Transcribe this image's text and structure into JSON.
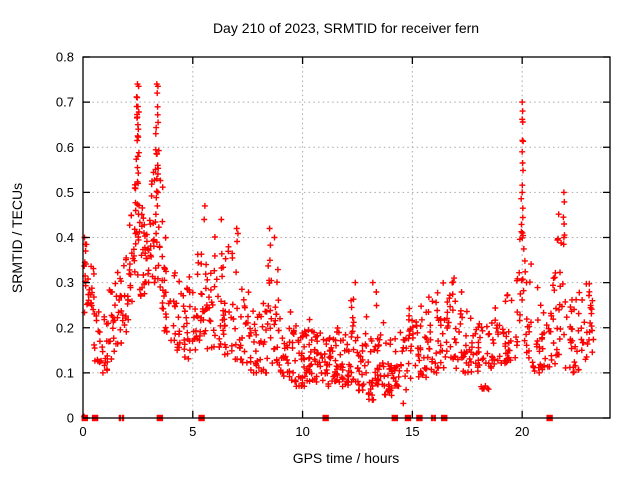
{
  "window": {
    "title": "Day 210 of 2023, SRMTID for receiver fern"
  },
  "chart_data": {
    "type": "scatter",
    "title": "Day 210 of 2023, SRMTID for receiver fern",
    "xlabel": "GPS time / hours",
    "ylabel": "SRMTID / TECUs",
    "xlim": [
      0,
      24
    ],
    "ylim": [
      0,
      0.8
    ],
    "grid": true,
    "legend": "none",
    "xticks": [
      0,
      5,
      10,
      15,
      20
    ],
    "xtick_labels": [
      "0",
      "5",
      "10",
      "15",
      "20"
    ],
    "yticks": [
      0,
      0.1,
      0.2,
      0.3,
      0.4,
      0.5,
      0.6,
      0.7,
      0.8
    ],
    "ytick_labels": [
      "0",
      "0.1",
      "0.2",
      "0.3",
      "0.4",
      "0.5",
      "0.6",
      "0.7",
      "0.8"
    ],
    "marker": {
      "shape": "plus",
      "color": "#ff0000",
      "size": 7
    },
    "grid_color": "#a8a8a8",
    "axis_color": "#000000",
    "seed": 20230210,
    "series": [
      {
        "name": "SRMTID",
        "style": "plus",
        "bins_format": [
          "t_start_h",
          "t_end_h",
          "y_min_TECU",
          "y_max_TECU",
          "n_points",
          "density_exponent"
        ],
        "bins": [
          [
            0.0,
            0.2,
            0.23,
            0.4,
            9,
            1.0
          ],
          [
            0.2,
            0.5,
            0.24,
            0.34,
            16,
            1.3
          ],
          [
            0.5,
            0.8,
            0.12,
            0.28,
            14,
            1.5
          ],
          [
            0.8,
            1.2,
            0.1,
            0.23,
            17,
            1.5
          ],
          [
            1.2,
            1.5,
            0.13,
            0.31,
            15,
            1.4
          ],
          [
            1.5,
            1.8,
            0.15,
            0.35,
            14,
            1.4
          ],
          [
            1.8,
            2.1,
            0.18,
            0.4,
            15,
            1.4
          ],
          [
            2.1,
            2.35,
            0.24,
            0.46,
            15,
            1.2
          ],
          [
            2.35,
            2.55,
            0.3,
            0.74,
            24,
            0.95
          ],
          [
            2.55,
            2.8,
            0.27,
            0.48,
            18,
            1.2
          ],
          [
            2.8,
            3.1,
            0.3,
            0.47,
            18,
            1.2
          ],
          [
            3.1,
            3.3,
            0.3,
            0.6,
            14,
            1.1
          ],
          [
            3.3,
            3.5,
            0.28,
            0.72,
            21,
            0.95
          ],
          [
            3.5,
            3.7,
            0.24,
            0.58,
            12,
            1.3
          ],
          [
            3.7,
            4.0,
            0.19,
            0.4,
            16,
            1.4
          ],
          [
            4.0,
            4.4,
            0.15,
            0.33,
            18,
            1.4
          ],
          [
            4.4,
            4.8,
            0.13,
            0.3,
            18,
            1.4
          ],
          [
            4.8,
            5.2,
            0.15,
            0.32,
            18,
            1.4
          ],
          [
            5.2,
            5.45,
            0.17,
            0.4,
            13,
            1.3
          ],
          [
            5.45,
            5.65,
            0.18,
            0.45,
            12,
            1.2
          ],
          [
            5.65,
            6.0,
            0.15,
            0.33,
            16,
            1.4
          ],
          [
            6.0,
            6.4,
            0.14,
            0.42,
            18,
            1.6
          ],
          [
            6.4,
            6.8,
            0.14,
            0.4,
            18,
            1.5
          ],
          [
            6.8,
            7.2,
            0.13,
            0.44,
            17,
            1.6
          ],
          [
            7.2,
            7.6,
            0.12,
            0.3,
            16,
            1.5
          ],
          [
            7.6,
            8.0,
            0.1,
            0.24,
            18,
            1.5
          ],
          [
            8.0,
            8.35,
            0.1,
            0.26,
            16,
            1.5
          ],
          [
            8.35,
            8.6,
            0.13,
            0.41,
            14,
            1.3
          ],
          [
            8.6,
            8.9,
            0.12,
            0.38,
            15,
            1.4
          ],
          [
            8.9,
            9.3,
            0.09,
            0.24,
            18,
            1.5
          ],
          [
            9.3,
            9.7,
            0.08,
            0.21,
            20,
            1.5
          ],
          [
            9.7,
            10.1,
            0.07,
            0.2,
            23,
            1.5
          ],
          [
            10.1,
            10.5,
            0.08,
            0.22,
            23,
            1.5
          ],
          [
            10.5,
            10.9,
            0.07,
            0.2,
            22,
            1.5
          ],
          [
            10.9,
            11.3,
            0.07,
            0.18,
            21,
            1.5
          ],
          [
            11.3,
            11.7,
            0.08,
            0.2,
            23,
            1.5
          ],
          [
            11.7,
            12.1,
            0.07,
            0.19,
            23,
            1.5
          ],
          [
            12.1,
            12.5,
            0.08,
            0.28,
            21,
            1.7
          ],
          [
            12.5,
            12.9,
            0.06,
            0.2,
            23,
            1.5
          ],
          [
            12.9,
            13.4,
            0.04,
            0.29,
            24,
            1.7
          ],
          [
            13.4,
            13.7,
            0.07,
            0.22,
            20,
            1.5
          ],
          [
            13.7,
            14.1,
            0.05,
            0.18,
            23,
            1.5
          ],
          [
            14.1,
            14.5,
            0.07,
            0.2,
            20,
            1.5
          ],
          [
            14.5,
            14.9,
            0.03,
            0.25,
            18,
            1.5
          ],
          [
            14.9,
            15.3,
            0.08,
            0.22,
            18,
            1.5
          ],
          [
            15.3,
            15.7,
            0.09,
            0.25,
            18,
            1.5
          ],
          [
            15.7,
            16.1,
            0.1,
            0.28,
            18,
            1.5
          ],
          [
            16.1,
            16.5,
            0.11,
            0.3,
            18,
            1.5
          ],
          [
            16.5,
            16.9,
            0.12,
            0.31,
            19,
            1.4
          ],
          [
            16.9,
            17.3,
            0.11,
            0.29,
            18,
            1.4
          ],
          [
            17.3,
            17.7,
            0.1,
            0.25,
            18,
            1.5
          ],
          [
            17.7,
            18.1,
            0.1,
            0.22,
            18,
            1.5
          ],
          [
            18.1,
            18.5,
            0.06,
            0.22,
            17,
            1.5
          ],
          [
            18.5,
            18.9,
            0.11,
            0.25,
            17,
            1.5
          ],
          [
            18.9,
            19.3,
            0.12,
            0.26,
            16,
            1.5
          ],
          [
            19.3,
            19.7,
            0.12,
            0.3,
            14,
            1.5
          ],
          [
            19.7,
            19.95,
            0.15,
            0.4,
            11,
            1.4
          ],
          [
            19.95,
            20.1,
            0.24,
            0.62,
            14,
            1.0
          ],
          [
            20.1,
            20.5,
            0.12,
            0.35,
            17,
            1.4
          ],
          [
            20.5,
            20.9,
            0.1,
            0.3,
            16,
            1.4
          ],
          [
            20.9,
            21.3,
            0.1,
            0.28,
            15,
            1.5
          ],
          [
            21.3,
            21.6,
            0.12,
            0.33,
            16,
            1.4
          ],
          [
            21.6,
            21.95,
            0.14,
            0.46,
            16,
            1.5
          ],
          [
            21.95,
            22.3,
            0.11,
            0.33,
            15,
            1.4
          ],
          [
            22.3,
            22.7,
            0.1,
            0.28,
            16,
            1.4
          ],
          [
            22.7,
            23.1,
            0.13,
            0.3,
            16,
            1.3
          ],
          [
            23.1,
            23.25,
            0.14,
            0.27,
            8,
            1.3
          ]
        ],
        "notable_points": [
          [
            0.05,
            0.003
          ],
          [
            0.07,
            0.4
          ],
          [
            0.1,
            0.385
          ],
          [
            0.12,
            0.37
          ],
          [
            0.08,
            0.345
          ],
          [
            2.36,
            0.51
          ],
          [
            2.48,
            0.74
          ],
          [
            2.53,
            0.735
          ],
          [
            2.47,
            0.71
          ],
          [
            2.5,
            0.69
          ],
          [
            2.46,
            0.665
          ],
          [
            2.5,
            0.65
          ],
          [
            2.52,
            0.64
          ],
          [
            2.49,
            0.625
          ],
          [
            2.47,
            0.615
          ],
          [
            2.5,
            0.58
          ],
          [
            2.48,
            0.555
          ],
          [
            2.51,
            0.52
          ],
          [
            3.36,
            0.74
          ],
          [
            3.41,
            0.735
          ],
          [
            3.38,
            0.72
          ],
          [
            3.42,
            0.655
          ],
          [
            3.37,
            0.585
          ],
          [
            3.4,
            0.56
          ],
          [
            3.36,
            0.53
          ],
          [
            3.41,
            0.5
          ],
          [
            3.39,
            0.47
          ],
          [
            5.55,
            0.47
          ],
          [
            5.52,
            0.44
          ],
          [
            6.3,
            0.44
          ],
          [
            7.0,
            0.42
          ],
          [
            8.5,
            0.42
          ],
          [
            8.72,
            0.4
          ],
          [
            9.45,
            0.235
          ],
          [
            12.4,
            0.3
          ],
          [
            13.2,
            0.3
          ],
          [
            16.9,
            0.31
          ],
          [
            20.0,
            0.7
          ],
          [
            20.02,
            0.68
          ],
          [
            20.0,
            0.662
          ],
          [
            20.03,
            0.656
          ],
          [
            20.01,
            0.615
          ],
          [
            20.0,
            0.59
          ],
          [
            20.02,
            0.565
          ],
          [
            20.0,
            0.5
          ],
          [
            20.03,
            0.465
          ],
          [
            20.01,
            0.41
          ],
          [
            21.9,
            0.5
          ],
          [
            21.92,
            0.479
          ],
          [
            21.88,
            0.445
          ],
          [
            21.91,
            0.43
          ],
          [
            21.9,
            0.4
          ],
          [
            21.89,
            0.385
          ],
          [
            23.2,
            0.26
          ]
        ]
      },
      {
        "name": "zero-line gap markers",
        "style": "filled-square",
        "y": 0,
        "x": [
          0.08,
          0.55,
          3.5,
          5.4,
          11.05,
          14.2,
          14.8,
          15.32,
          16.45,
          21.25
        ],
        "x_thin": [
          1.68,
          1.82,
          15.9,
          16.02
        ]
      }
    ]
  }
}
